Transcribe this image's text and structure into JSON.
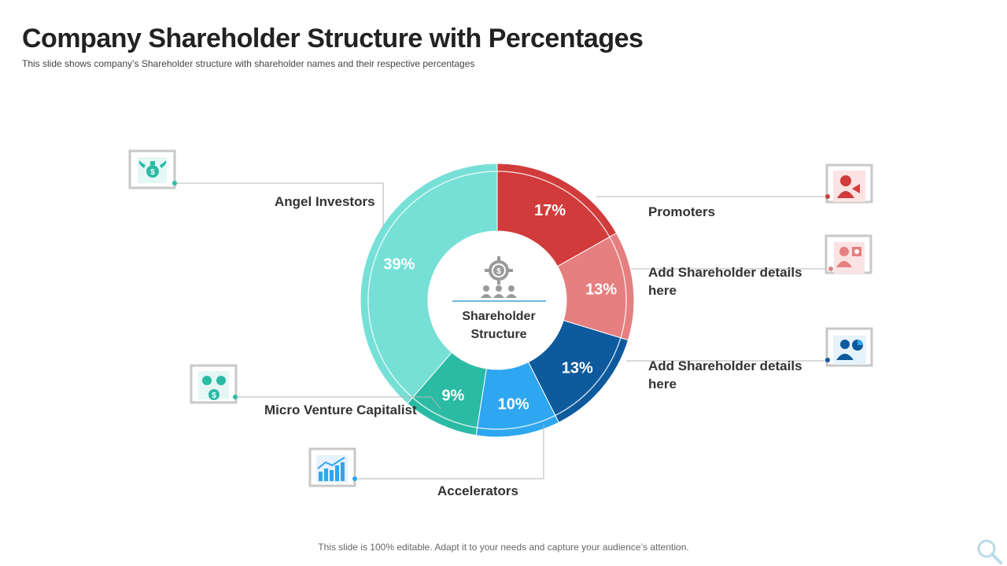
{
  "header": {
    "title": "Company Shareholder Structure with Percentages",
    "subtitle": "This slide shows company’s Shareholder structure with shareholder names and their respective percentages"
  },
  "footer": "This slide is 100% editable. Adapt it to your needs and capture your audience’s attention.",
  "center": {
    "line1": "Shareholder",
    "line2": "Structure"
  },
  "chart_data": {
    "type": "pie",
    "donut": true,
    "unit": "%",
    "series": [
      {
        "name": "Promoters",
        "value": 17,
        "label": "17%",
        "color": "#d13b3b",
        "icon": "speaker-person-icon"
      },
      {
        "name": "Add Shareholder details here",
        "value": 13,
        "label": "13%",
        "color": "#e57f80",
        "icon": "presenter-chart-icon"
      },
      {
        "name": "Add Shareholder details here",
        "value": 13,
        "label": "13%",
        "color": "#0d5a9c",
        "icon": "businessman-pie-icon"
      },
      {
        "name": "Accelerators",
        "value": 10,
        "label": "10%",
        "color": "#2ea6f0",
        "icon": "growth-chart-icon"
      },
      {
        "name": "Micro Venture Capitalist",
        "value": 9,
        "label": "9%",
        "color": "#2bbba4",
        "icon": "investors-dollar-icon"
      },
      {
        "name": "Angel Investors",
        "value": 39,
        "label": "39%",
        "color": "#76e0d6",
        "icon": "winged-money-bag-icon"
      }
    ]
  }
}
